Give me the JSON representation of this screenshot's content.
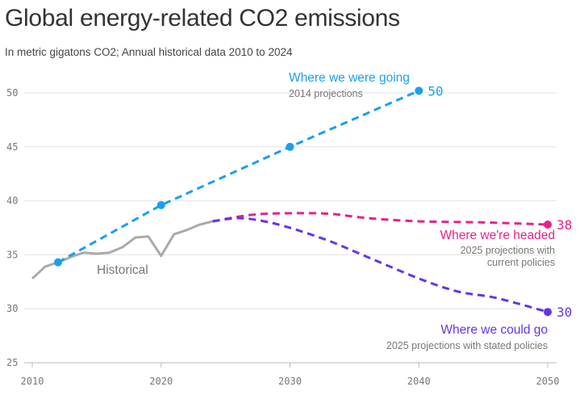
{
  "title": "Global energy-related CO2 emissions",
  "subtitle": "In metric gigatons CO2; Annual historical data 2010 to 2024",
  "chart_data": {
    "type": "line",
    "title": "Global energy-related CO2 emissions",
    "subtitle": "In metric gigatons CO2; Annual historical data 2010 to 2024",
    "xlim": [
      2010,
      2050
    ],
    "ylim": [
      25,
      52
    ],
    "xticks": [
      2010,
      2020,
      2030,
      2040,
      2050
    ],
    "yticks": [
      25,
      30,
      35,
      40,
      45,
      50
    ],
    "grid": true,
    "series": [
      {
        "name": "Historical",
        "color": "#aaaaaa",
        "dashed": false,
        "x": [
          2010,
          2011,
          2012,
          2013,
          2014,
          2015,
          2016,
          2017,
          2018,
          2019,
          2020,
          2021,
          2022,
          2023,
          2024
        ],
        "y": [
          32.8,
          33.9,
          34.3,
          34.8,
          35.2,
          35.1,
          35.2,
          35.7,
          36.6,
          36.7,
          34.9,
          36.9,
          37.3,
          37.8,
          38.1
        ]
      },
      {
        "name": "Where we were going",
        "note": "2014 projections",
        "color": "#1a9ff0",
        "dashed": true,
        "x": [
          2012,
          2020,
          2030,
          2040
        ],
        "y": [
          34.3,
          39.6,
          45.0,
          50.2
        ],
        "markers": [
          2012,
          2020,
          2030,
          2040
        ],
        "end_label": "50"
      },
      {
        "name": "Where we're headed",
        "note": "2025 projections with current policies",
        "color": "#e8218c",
        "dashed": true,
        "x": [
          2024,
          2027,
          2030,
          2033,
          2036,
          2040,
          2045,
          2050
        ],
        "y": [
          38.1,
          38.7,
          38.85,
          38.8,
          38.4,
          38.1,
          38.0,
          37.8
        ],
        "markers": [
          2050
        ],
        "end_label": "38"
      },
      {
        "name": "Where we could go",
        "note": "2025 projections with stated policies",
        "color": "#6434ea",
        "dashed": true,
        "x": [
          2024,
          2026,
          2028,
          2030,
          2033,
          2036,
          2040,
          2043,
          2046,
          2050
        ],
        "y": [
          38.1,
          38.4,
          38.1,
          37.5,
          36.3,
          34.8,
          32.8,
          31.6,
          31.0,
          29.7
        ],
        "markers": [
          2050
        ],
        "end_label": "30"
      }
    ]
  }
}
